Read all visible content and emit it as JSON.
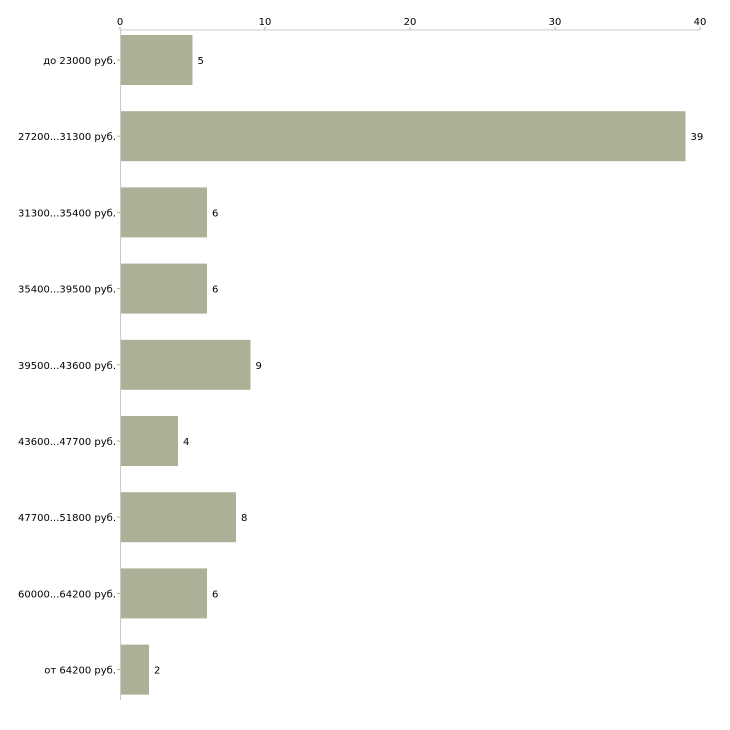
{
  "chart_data": {
    "type": "bar",
    "orientation": "horizontal",
    "title": "",
    "xlabel": "",
    "ylabel": "",
    "xlim": [
      0,
      40
    ],
    "x_ticks": [
      0,
      10,
      20,
      30,
      40
    ],
    "grid": false,
    "bar_color": "#abb197",
    "categories": [
      "до 23000 руб.",
      "27200...31300 руб.",
      "31300...35400 руб.",
      "35400...39500 руб.",
      "39500...43600 руб.",
      "43600...47700 руб.",
      "47700...51800 руб.",
      "60000...64200 руб.",
      "от 64200 руб."
    ],
    "values": [
      5,
      39,
      6,
      6,
      9,
      4,
      8,
      6,
      2
    ]
  }
}
